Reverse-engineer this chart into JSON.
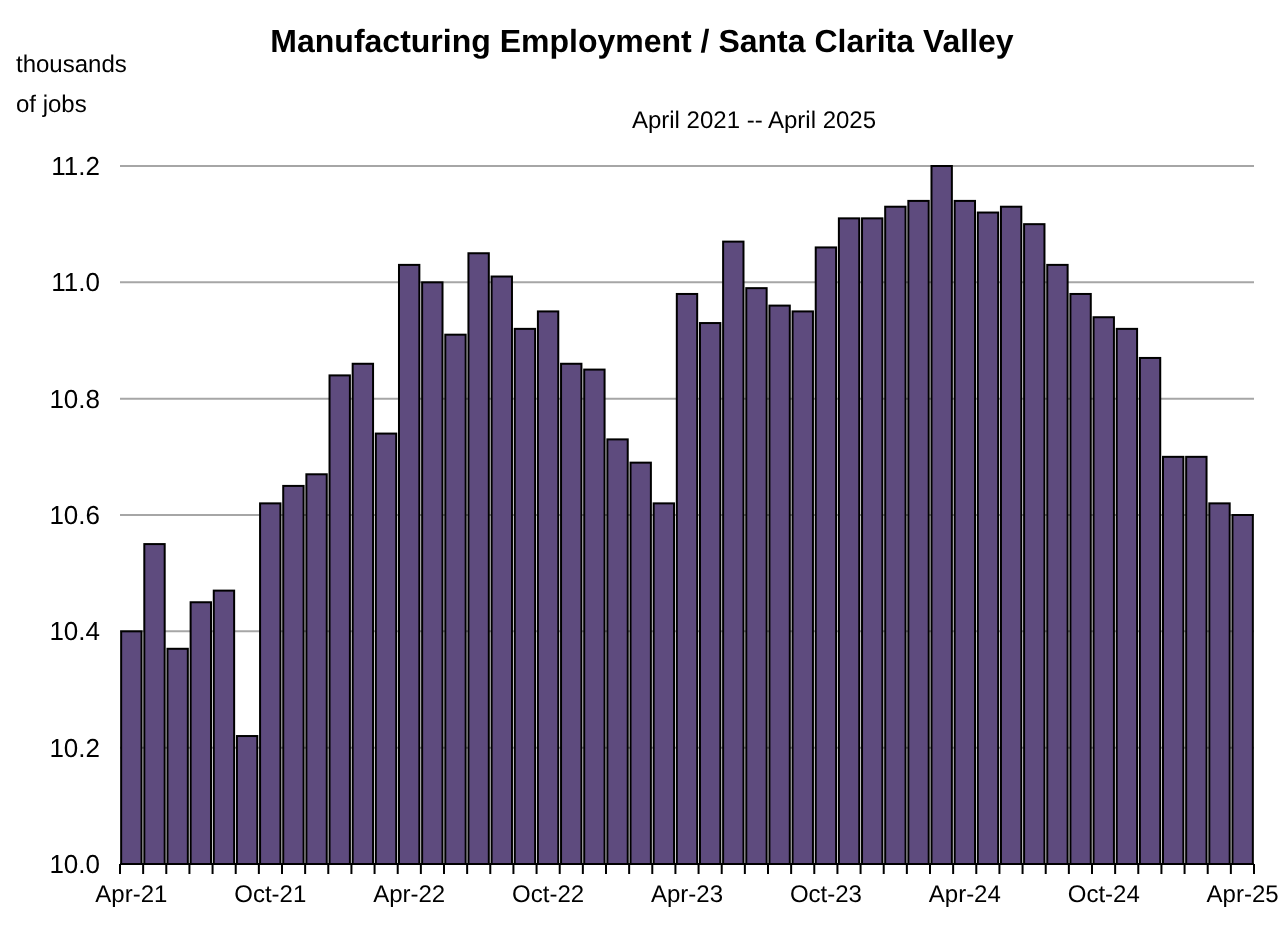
{
  "chart_data": {
    "type": "bar",
    "title": "Manufacturing Employment / Santa Clarita Valley",
    "subtitle": "April 2021 -- April 2025",
    "ylabel": "thousands of jobs",
    "categories": [
      "Apr-21",
      null,
      null,
      null,
      null,
      null,
      "Oct-21",
      null,
      null,
      null,
      null,
      null,
      "Apr-22",
      null,
      null,
      null,
      null,
      null,
      "Oct-22",
      null,
      null,
      null,
      null,
      null,
      "Apr-23",
      null,
      null,
      null,
      null,
      null,
      "Oct-23",
      null,
      null,
      null,
      null,
      null,
      "Apr-24",
      null,
      null,
      null,
      null,
      null,
      "Oct-24",
      null,
      null,
      null,
      null,
      null,
      "Apr-25"
    ],
    "values": [
      10.4,
      10.55,
      10.37,
      10.45,
      10.47,
      10.22,
      10.62,
      10.65,
      10.67,
      10.84,
      10.86,
      10.74,
      11.03,
      11.0,
      10.91,
      11.05,
      11.01,
      10.92,
      10.95,
      10.86,
      10.85,
      10.73,
      10.69,
      10.62,
      10.98,
      10.93,
      11.07,
      10.99,
      10.96,
      10.95,
      11.06,
      11.11,
      11.11,
      11.13,
      11.14,
      11.2,
      11.14,
      11.12,
      11.13,
      11.1,
      11.03,
      10.98,
      10.94,
      10.92,
      10.87,
      10.7,
      10.7,
      10.62,
      10.6
    ],
    "color": "#5e4b7e",
    "ylim": [
      10.0,
      11.2
    ],
    "yticks": [
      {
        "value": 10.0,
        "label": "10.0"
      },
      {
        "value": 10.2,
        "label": "10.2"
      },
      {
        "value": 10.4,
        "label": "10.4"
      },
      {
        "value": 10.6,
        "label": "10.6"
      },
      {
        "value": 10.8,
        "label": "10.8"
      },
      {
        "value": 11.0,
        "label": "11.0"
      },
      {
        "value": 11.2,
        "label": "11.2"
      }
    ],
    "grid": "y"
  }
}
